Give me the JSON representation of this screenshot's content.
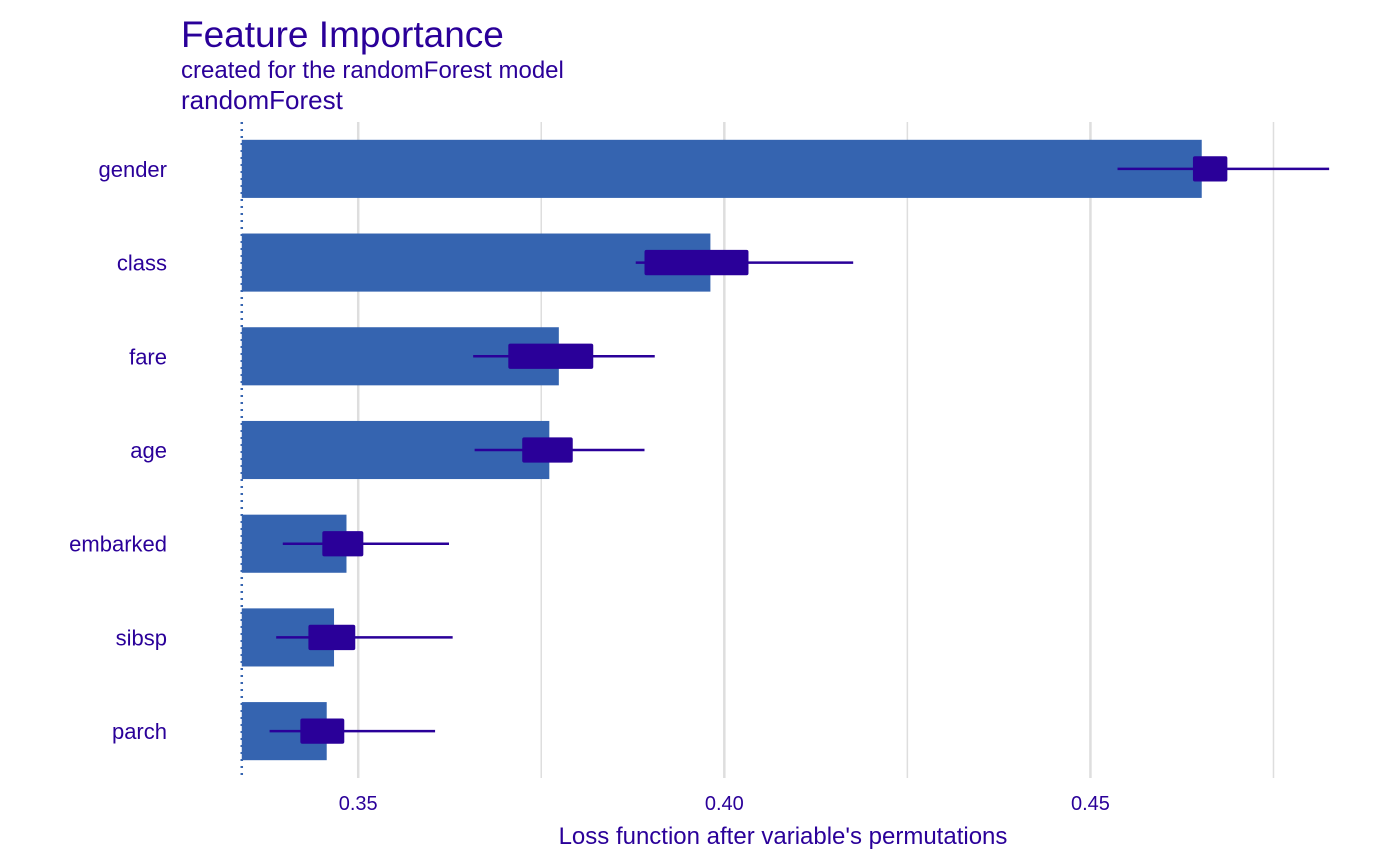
{
  "chart_data": {
    "type": "bar",
    "title": "Feature Importance",
    "subtitle": "created for the randomForest model",
    "model_label": "randomForest",
    "xlabel": "Loss function after variable's permutations",
    "ylabel": "",
    "xlim": [
      0.3258,
      0.4834
    ],
    "baseline": 0.3341,
    "xticks": [
      0.35,
      0.4,
      0.45
    ],
    "xtick_labels": [
      "0.35",
      "0.40",
      "0.45"
    ],
    "grid": true,
    "legend": "none",
    "categories": [
      "gender",
      "class",
      "fare",
      "age",
      "embarked",
      "sibsp",
      "parch"
    ],
    "values": [
      0.4652,
      0.3981,
      0.3774,
      0.3761,
      0.3484,
      0.3467,
      0.3457
    ],
    "box_low": [
      0.464,
      0.3891,
      0.3705,
      0.3724,
      0.3451,
      0.3432,
      0.3421
    ],
    "box_high": [
      0.4687,
      0.4033,
      0.3821,
      0.3793,
      0.3507,
      0.3496,
      0.3481
    ],
    "whisker_low": [
      0.4537,
      0.3879,
      0.3657,
      0.3659,
      0.3397,
      0.3388,
      0.3379
    ],
    "whisker_high": [
      0.4826,
      0.4176,
      0.3905,
      0.3891,
      0.3624,
      0.3629,
      0.3605
    ],
    "colors": {
      "bar": "#3564B0",
      "box": "#2A0099",
      "baseline": "#3564B0",
      "grid": "#DEDEDE",
      "text": "#2A0099"
    }
  }
}
